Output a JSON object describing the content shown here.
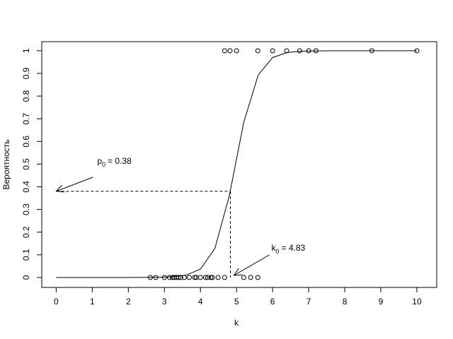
{
  "chart_data": {
    "type": "scatter",
    "x_label": "k",
    "y_label": "Вероятность",
    "xlim": [
      -0.4,
      10.55
    ],
    "ylim": [
      -0.044,
      1.04
    ],
    "xticks": [
      0,
      1,
      2,
      3,
      4,
      5,
      6,
      7,
      8,
      9,
      10
    ],
    "yticks": [
      0,
      0.1,
      0.2,
      0.3,
      0.4,
      0.5,
      0.6,
      0.7,
      0.8,
      0.9,
      1
    ],
    "points": {
      "x": [
        2.61,
        2.76,
        3.0,
        3.14,
        3.22,
        3.27,
        3.33,
        3.39,
        3.45,
        3.55,
        3.69,
        3.84,
        3.88,
        4.0,
        4.14,
        4.2,
        4.29,
        4.33,
        4.49,
        4.67,
        5.2,
        5.39,
        5.59,
        4.67,
        4.82,
        5.0,
        5.59,
        6.0,
        6.39,
        6.75,
        7.0,
        7.2,
        8.75,
        10.0
      ],
      "y": [
        0,
        0,
        0,
        0,
        0,
        0,
        0,
        0,
        0,
        0,
        0,
        0,
        0,
        0,
        0,
        0,
        0,
        0,
        0,
        0,
        0,
        0,
        0,
        1,
        1,
        1,
        1,
        1,
        1,
        1,
        1,
        1,
        1,
        1
      ]
    },
    "curve": {
      "x": [
        0,
        0.4,
        0.8,
        1.2,
        1.6,
        2.0,
        2.4,
        2.8,
        3.2,
        3.6,
        4.0,
        4.4,
        4.8,
        5.2,
        5.6,
        6.0,
        6.4,
        6.8,
        7.2,
        7.6,
        8.0,
        8.4,
        8.8,
        9.2,
        9.6,
        10.0
      ],
      "y": [
        0,
        0,
        0,
        0,
        0,
        0,
        0.0002,
        0.0007,
        0.0026,
        0.01,
        0.037,
        0.128,
        0.361,
        0.684,
        0.893,
        0.97,
        0.992,
        0.998,
        0.999,
        1,
        1,
        1,
        1,
        1,
        1,
        1
      ]
    },
    "p0": 0.38,
    "k0": 4.83,
    "p0_annotation": {
      "main": "p",
      "sub": "0",
      "rest": "= 0.38"
    },
    "k0_annotation": {
      "main": "k",
      "sub": "0",
      "rest": "= 4.83"
    }
  }
}
